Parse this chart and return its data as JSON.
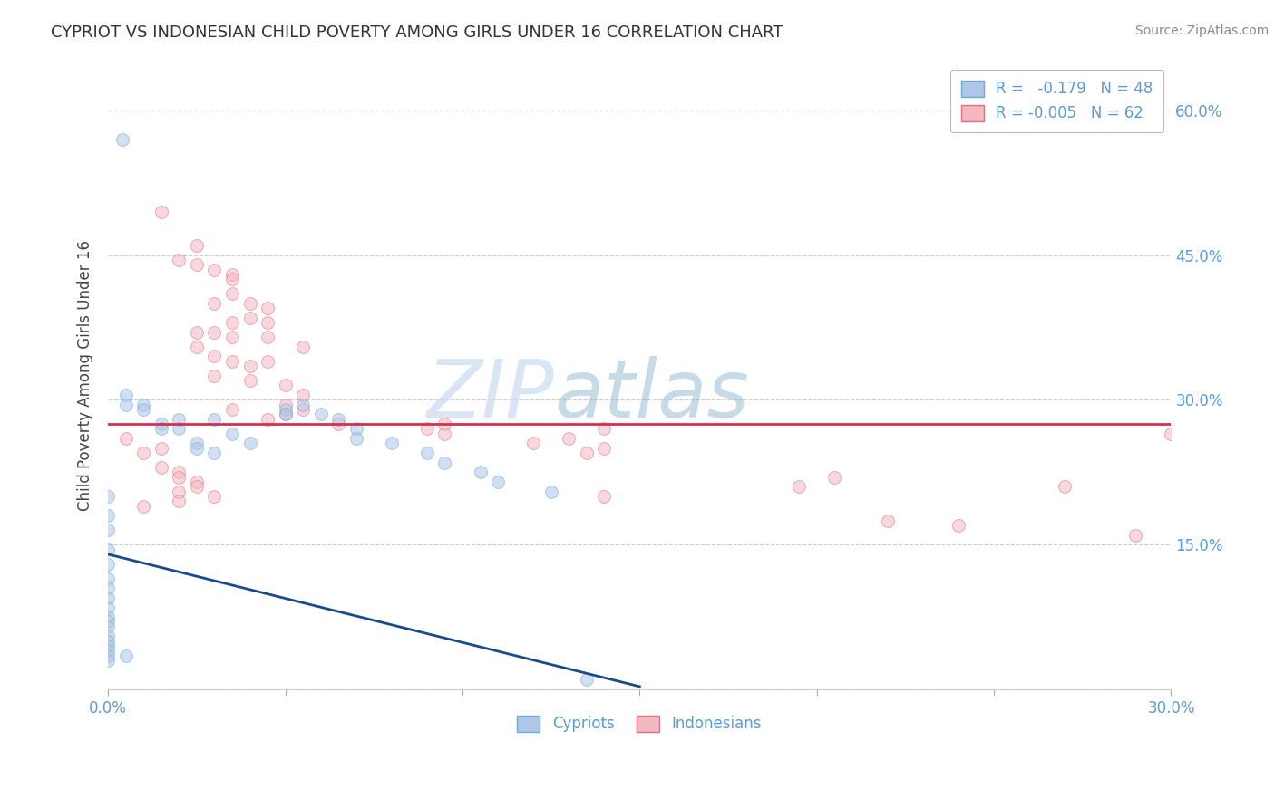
{
  "title": "CYPRIOT VS INDONESIAN CHILD POVERTY AMONG GIRLS UNDER 16 CORRELATION CHART",
  "source": "Source: ZipAtlas.com",
  "ylabel": "Child Poverty Among Girls Under 16",
  "xlim": [
    0.0,
    30.0
  ],
  "ylim": [
    0.0,
    65.0
  ],
  "legend_entries": [
    {
      "label": "Cypriots",
      "color": "#aec6e8",
      "r": " -0.179",
      "n": "48"
    },
    {
      "label": "Indonesians",
      "color": "#f4b8c1",
      "r": "-0.005",
      "n": "62"
    }
  ],
  "cypriot_scatter_x": [
    0.4,
    0.0,
    0.0,
    0.0,
    0.0,
    0.0,
    0.0,
    0.0,
    0.0,
    0.0,
    0.0,
    0.0,
    0.0,
    0.0,
    0.0,
    0.0,
    0.0,
    0.0,
    0.0,
    0.5,
    0.5,
    0.5,
    1.0,
    1.0,
    1.5,
    1.5,
    2.0,
    2.0,
    2.5,
    2.5,
    3.0,
    3.0,
    3.5,
    4.0,
    5.0,
    5.0,
    5.5,
    6.0,
    6.5,
    7.0,
    7.0,
    8.0,
    9.0,
    9.5,
    10.5,
    11.0,
    12.5,
    13.5
  ],
  "cypriot_scatter_y": [
    57.0,
    20.0,
    18.0,
    16.5,
    14.5,
    13.0,
    11.5,
    10.5,
    9.5,
    8.5,
    7.5,
    7.0,
    6.5,
    5.5,
    5.0,
    4.5,
    4.0,
    3.5,
    3.0,
    30.5,
    29.5,
    3.5,
    29.5,
    29.0,
    27.5,
    27.0,
    28.0,
    27.0,
    25.5,
    25.0,
    28.0,
    24.5,
    26.5,
    25.5,
    29.0,
    28.5,
    29.5,
    28.5,
    28.0,
    27.0,
    26.0,
    25.5,
    24.5,
    23.5,
    22.5,
    21.5,
    20.5,
    1.0
  ],
  "indonesian_scatter_x": [
    1.5,
    2.5,
    2.0,
    2.5,
    3.0,
    3.5,
    3.5,
    3.5,
    3.0,
    4.0,
    4.5,
    4.0,
    3.5,
    4.5,
    3.0,
    2.5,
    4.5,
    3.5,
    2.5,
    3.0,
    3.5,
    4.5,
    4.0,
    5.5,
    3.0,
    4.0,
    5.0,
    5.5,
    5.0,
    3.5,
    5.5,
    5.0,
    4.5,
    6.5,
    9.5,
    9.0,
    14.0,
    9.5,
    13.0,
    12.0,
    14.0,
    13.5,
    14.0,
    19.5,
    20.5,
    22.0,
    24.0,
    27.0,
    29.0,
    30.0,
    0.5,
    1.5,
    1.0,
    1.5,
    2.0,
    2.0,
    2.5,
    2.5,
    2.0,
    3.0,
    2.0,
    1.0
  ],
  "indonesian_scatter_y": [
    49.5,
    46.0,
    44.5,
    44.0,
    43.5,
    43.0,
    42.5,
    41.0,
    40.0,
    40.0,
    39.5,
    38.5,
    38.0,
    38.0,
    37.0,
    37.0,
    36.5,
    36.5,
    35.5,
    34.5,
    34.0,
    34.0,
    33.5,
    35.5,
    32.5,
    32.0,
    31.5,
    30.5,
    29.5,
    29.0,
    29.0,
    28.5,
    28.0,
    27.5,
    27.5,
    27.0,
    27.0,
    26.5,
    26.0,
    25.5,
    25.0,
    24.5,
    20.0,
    21.0,
    22.0,
    17.5,
    17.0,
    21.0,
    16.0,
    26.5,
    26.0,
    25.0,
    24.5,
    23.0,
    22.5,
    22.0,
    21.5,
    21.0,
    20.5,
    20.0,
    19.5,
    19.0
  ],
  "cypriot_trendline_x": [
    0.0,
    15.0
  ],
  "cypriot_trendline_y": [
    14.0,
    0.3
  ],
  "indonesian_trendline_x": [
    0.0,
    30.0
  ],
  "indonesian_trendline_y": [
    27.5,
    27.5
  ],
  "watermark_text": "ZIP",
  "watermark_text2": "atlas",
  "background_color": "#ffffff",
  "scatter_alpha": 0.55,
  "scatter_size": 100,
  "grid_color": "#cccccc",
  "cypriot_color": "#aec6e8",
  "cypriot_edge_color": "#6aaad4",
  "indonesian_color": "#f4b8c1",
  "indonesian_edge_color": "#e07080",
  "trendline_cypriot_color": "#1a4a8a",
  "trendline_indonesian_color": "#d43050",
  "title_fontsize": 13,
  "label_fontsize": 12,
  "tick_fontsize": 12
}
